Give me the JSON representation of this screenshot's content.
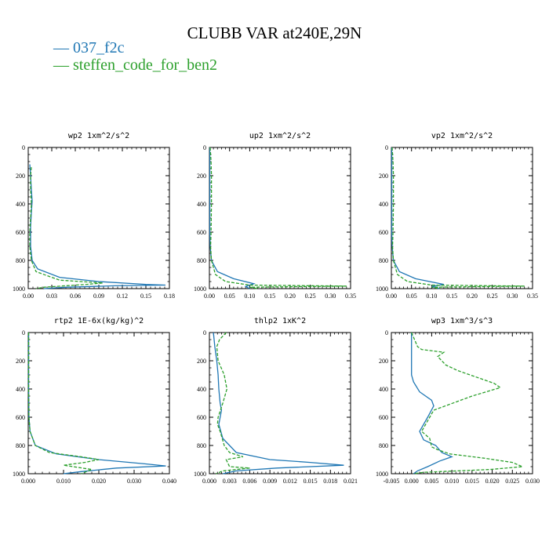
{
  "figure": {
    "title": "CLUBB VAR at240E,29N",
    "legend": [
      {
        "label": "037_f2c",
        "color": "#1f77b4",
        "dash": false
      },
      {
        "label": "steffen_code_for_ben2",
        "color": "#2ca02c",
        "dash": true
      }
    ]
  },
  "chart_data": [
    {
      "type": "line",
      "title": "wp2  1xm^2/s^2",
      "xlim": [
        0,
        0.18
      ],
      "ylim": [
        1000,
        0
      ],
      "xticks": [
        "0.00",
        "0.03",
        "0.06",
        "0.09",
        "0.12",
        "0.15",
        "0.18"
      ],
      "yticks": [
        "0",
        "200",
        "400",
        "600",
        "800",
        "1000"
      ],
      "series": [
        {
          "name": "037_f2c",
          "points": [
            [
              0.002,
              120
            ],
            [
              0.003,
              200
            ],
            [
              0.004,
              300
            ],
            [
              0.005,
              380
            ],
            [
              0.004,
              460
            ],
            [
              0.003,
              560
            ],
            [
              0.003,
              700
            ],
            [
              0.005,
              800
            ],
            [
              0.012,
              860
            ],
            [
              0.04,
              920
            ],
            [
              0.09,
              950
            ],
            [
              0.15,
              970
            ],
            [
              0.175,
              975
            ],
            [
              0.11,
              980
            ],
            [
              0.05,
              990
            ],
            [
              0.02,
              1000
            ]
          ]
        },
        {
          "name": "steffen_code_for_ben2",
          "points": [
            [
              0.004,
              140
            ],
            [
              0.003,
              200
            ],
            [
              0.003,
              300
            ],
            [
              0.004,
              400
            ],
            [
              0.003,
              500
            ],
            [
              0.002,
              600
            ],
            [
              0.002,
              700
            ],
            [
              0.004,
              800
            ],
            [
              0.01,
              880
            ],
            [
              0.04,
              940
            ],
            [
              0.095,
              960
            ],
            [
              0.075,
              970
            ],
            [
              0.02,
              990
            ],
            [
              0.01,
              1000
            ]
          ]
        }
      ]
    },
    {
      "type": "line",
      "title": "up2  1xm^2/s^2",
      "xlim": [
        0,
        0.35
      ],
      "ylim": [
        1000,
        0
      ],
      "xticks": [
        "0.00",
        "0.05",
        "0.10",
        "0.15",
        "0.20",
        "0.25",
        "0.30",
        "0.35"
      ],
      "yticks": [
        "0",
        "200",
        "400",
        "600",
        "800",
        "1000"
      ],
      "series": [
        {
          "name": "037_f2c",
          "points": [
            [
              0.001,
              0
            ],
            [
              0.001,
              200
            ],
            [
              0.001,
              400
            ],
            [
              0.001,
              600
            ],
            [
              0.002,
              700
            ],
            [
              0.005,
              800
            ],
            [
              0.02,
              880
            ],
            [
              0.06,
              930
            ],
            [
              0.11,
              965
            ],
            [
              0.09,
              985
            ],
            [
              0.1,
              1000
            ]
          ]
        },
        {
          "name": "steffen_code_for_ben2",
          "points": [
            [
              0.002,
              0
            ],
            [
              0.004,
              100
            ],
            [
              0.005,
              200
            ],
            [
              0.005,
              400
            ],
            [
              0.004,
              600
            ],
            [
              0.003,
              700
            ],
            [
              0.005,
              800
            ],
            [
              0.015,
              900
            ],
            [
              0.04,
              950
            ],
            [
              0.1,
              975
            ],
            [
              0.34,
              982
            ],
            [
              0.1,
              990
            ],
            [
              0.12,
              1000
            ]
          ]
        }
      ]
    },
    {
      "type": "line",
      "title": "vp2  1xm^2/s^2",
      "xlim": [
        0,
        0.35
      ],
      "ylim": [
        1000,
        0
      ],
      "xticks": [
        "0.00",
        "0.05",
        "0.10",
        "0.15",
        "0.20",
        "0.25",
        "0.30",
        "0.35"
      ],
      "yticks": [
        "0",
        "200",
        "400",
        "600",
        "800",
        "1000"
      ],
      "series": [
        {
          "name": "037_f2c",
          "points": [
            [
              0.001,
              0
            ],
            [
              0.001,
              200
            ],
            [
              0.001,
              400
            ],
            [
              0.001,
              600
            ],
            [
              0.002,
              700
            ],
            [
              0.005,
              800
            ],
            [
              0.02,
              880
            ],
            [
              0.06,
              930
            ],
            [
              0.13,
              970
            ],
            [
              0.1,
              985
            ],
            [
              0.12,
              1000
            ]
          ]
        },
        {
          "name": "steffen_code_for_ben2",
          "points": [
            [
              0.002,
              0
            ],
            [
              0.004,
              100
            ],
            [
              0.005,
              200
            ],
            [
              0.005,
              400
            ],
            [
              0.004,
              600
            ],
            [
              0.003,
              700
            ],
            [
              0.005,
              800
            ],
            [
              0.015,
              900
            ],
            [
              0.04,
              950
            ],
            [
              0.1,
              975
            ],
            [
              0.33,
              982
            ],
            [
              0.1,
              990
            ],
            [
              0.12,
              1000
            ]
          ]
        }
      ]
    },
    {
      "type": "line",
      "title": "rtp2  1E-6x(kg/kg)^2",
      "xlim": [
        0,
        0.04
      ],
      "ylim": [
        1000,
        0
      ],
      "xticks": [
        "0.000",
        "0.010",
        "0.020",
        "0.030",
        "0.040"
      ],
      "yticks": [
        "0",
        "200",
        "400",
        "600",
        "800",
        "1000"
      ],
      "series": [
        {
          "name": "037_f2c",
          "points": [
            [
              0.0001,
              0
            ],
            [
              0.0001,
              200
            ],
            [
              0.0001,
              400
            ],
            [
              0.0002,
              600
            ],
            [
              0.0005,
              700
            ],
            [
              0.002,
              800
            ],
            [
              0.008,
              860
            ],
            [
              0.02,
              900
            ],
            [
              0.033,
              930
            ],
            [
              0.039,
              945
            ],
            [
              0.025,
              960
            ],
            [
              0.015,
              985
            ],
            [
              0.01,
              1000
            ]
          ]
        },
        {
          "name": "steffen_code_for_ben2",
          "points": [
            [
              0.0001,
              0
            ],
            [
              0.0001,
              200
            ],
            [
              0.0001,
              400
            ],
            [
              0.0002,
              600
            ],
            [
              0.0005,
              700
            ],
            [
              0.002,
              800
            ],
            [
              0.006,
              850
            ],
            [
              0.015,
              880
            ],
            [
              0.02,
              900
            ],
            [
              0.016,
              920
            ],
            [
              0.01,
              940
            ],
            [
              0.018,
              970
            ],
            [
              0.015,
              1000
            ]
          ]
        }
      ]
    },
    {
      "type": "line",
      "title": "thlp2  1xK^2",
      "xlim": [
        0,
        0.021
      ],
      "ylim": [
        1000,
        0
      ],
      "xticks": [
        "0.000",
        "0.003",
        "0.006",
        "0.009",
        "0.012",
        "0.015",
        "0.018",
        "0.021"
      ],
      "yticks": [
        "0",
        "200",
        "400",
        "600",
        "800",
        "1000"
      ],
      "series": [
        {
          "name": "037_f2c",
          "points": [
            [
              0.0006,
              0
            ],
            [
              0.0008,
              100
            ],
            [
              0.0011,
              200
            ],
            [
              0.0013,
              300
            ],
            [
              0.0014,
              400
            ],
            [
              0.0016,
              500
            ],
            [
              0.0018,
              550
            ],
            [
              0.0014,
              650
            ],
            [
              0.002,
              750
            ],
            [
              0.004,
              850
            ],
            [
              0.009,
              900
            ],
            [
              0.015,
              920
            ],
            [
              0.02,
              940
            ],
            [
              0.01,
              960
            ],
            [
              0.004,
              980
            ],
            [
              0.002,
              1000
            ]
          ]
        },
        {
          "name": "steffen_code_for_ben2",
          "points": [
            [
              0.0025,
              0
            ],
            [
              0.0015,
              50
            ],
            [
              0.0011,
              100
            ],
            [
              0.0013,
              200
            ],
            [
              0.0022,
              300
            ],
            [
              0.0026,
              400
            ],
            [
              0.002,
              500
            ],
            [
              0.0013,
              600
            ],
            [
              0.0012,
              650
            ],
            [
              0.0016,
              700
            ],
            [
              0.0022,
              800
            ],
            [
              0.003,
              850
            ],
            [
              0.005,
              880
            ],
            [
              0.0025,
              900
            ],
            [
              0.003,
              950
            ],
            [
              0.006,
              960
            ],
            [
              0.002,
              980
            ],
            [
              0.001,
              1000
            ]
          ]
        }
      ]
    },
    {
      "type": "line",
      "title": "wp3  1xm^3/s^3",
      "xlim": [
        -0.005,
        0.03
      ],
      "ylim": [
        1000,
        0
      ],
      "xticks": [
        "-0.005",
        "0.000",
        "0.005",
        "0.010",
        "0.015",
        "0.020",
        "0.025",
        "0.030"
      ],
      "yticks": [
        "0",
        "200",
        "400",
        "600",
        "800",
        "1000"
      ],
      "series": [
        {
          "name": "037_f2c",
          "points": [
            [
              0.0,
              0
            ],
            [
              0.0,
              100
            ],
            [
              0.0,
              200
            ],
            [
              0.0,
              300
            ],
            [
              0.0005,
              350
            ],
            [
              0.002,
              420
            ],
            [
              0.005,
              480
            ],
            [
              0.0055,
              520
            ],
            [
              0.004,
              600
            ],
            [
              0.002,
              700
            ],
            [
              0.003,
              760
            ],
            [
              0.006,
              800
            ],
            [
              0.0075,
              850
            ],
            [
              0.01,
              880
            ],
            [
              0.007,
              910
            ],
            [
              0.004,
              950
            ],
            [
              0.0015,
              980
            ],
            [
              0.0005,
              1000
            ]
          ]
        },
        {
          "name": "steffen_code_for_ben2",
          "points": [
            [
              0.0,
              0
            ],
            [
              0.0015,
              100
            ],
            [
              0.0025,
              120
            ],
            [
              0.008,
              140
            ],
            [
              0.0065,
              170
            ],
            [
              0.0085,
              230
            ],
            [
              0.0115,
              270
            ],
            [
              0.0205,
              360
            ],
            [
              0.022,
              390
            ],
            [
              0.015,
              450
            ],
            [
              0.0055,
              550
            ],
            [
              0.0045,
              600
            ],
            [
              0.0025,
              700
            ],
            [
              0.0045,
              750
            ],
            [
              0.005,
              810
            ],
            [
              0.0065,
              830
            ],
            [
              0.0095,
              860
            ],
            [
              0.018,
              890
            ],
            [
              0.025,
              920
            ],
            [
              0.0275,
              950
            ],
            [
              0.0195,
              970
            ],
            [
              0.003,
              990
            ],
            [
              0.0005,
              1000
            ]
          ]
        }
      ]
    }
  ]
}
